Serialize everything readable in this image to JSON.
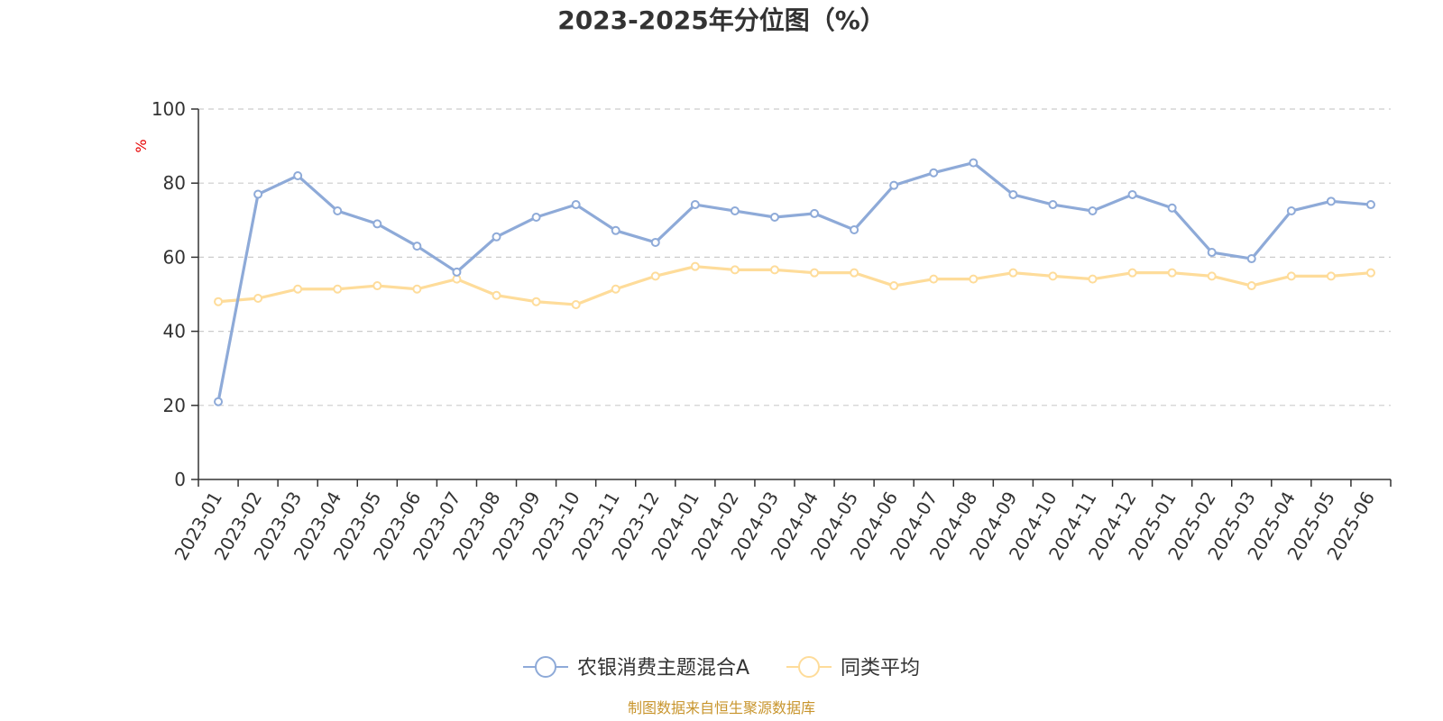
{
  "chart_data": {
    "type": "line",
    "title": "2023-2025年分位图（%）",
    "ylabel": "%",
    "ylim": [
      0,
      100
    ],
    "yticks": [
      0,
      20,
      40,
      60,
      80,
      100
    ],
    "grid": true,
    "legend_position": "bottom-center",
    "categories": [
      "2023-01",
      "2023-02",
      "2023-03",
      "2023-04",
      "2023-05",
      "2023-06",
      "2023-07",
      "2023-08",
      "2023-09",
      "2023-10",
      "2023-11",
      "2023-12",
      "2024-01",
      "2024-02",
      "2024-03",
      "2024-04",
      "2024-05",
      "2024-06",
      "2024-07",
      "2024-08",
      "2024-09",
      "2024-10",
      "2024-11",
      "2024-12",
      "2025-01",
      "2025-02",
      "2025-03",
      "2025-04",
      "2025-05",
      "2025-06"
    ],
    "series": [
      {
        "name": "农银消费主题混合A",
        "color": "#8eaad8",
        "values": [
          21,
          77,
          82,
          72.5,
          69,
          63,
          56,
          65.5,
          70.8,
          74.2,
          67.2,
          64,
          74.2,
          72.5,
          70.8,
          71.8,
          67.4,
          79.4,
          82.8,
          85.5,
          76.9,
          74.2,
          72.5,
          76.9,
          73.3,
          61.3,
          59.6,
          72.5,
          75.1,
          74.2
        ]
      },
      {
        "name": "同类平均",
        "color": "#fedc9a",
        "values": [
          48,
          48.9,
          51.4,
          51.4,
          52.3,
          51.4,
          54.1,
          49.7,
          48,
          47.2,
          51.4,
          54.9,
          57.5,
          56.6,
          56.6,
          55.8,
          55.8,
          52.3,
          54.1,
          54.1,
          55.8,
          54.9,
          54.1,
          55.8,
          55.8,
          54.9,
          52.3,
          54.9,
          54.9,
          55.8
        ]
      }
    ]
  },
  "source": "制图数据来自恒生聚源数据库"
}
